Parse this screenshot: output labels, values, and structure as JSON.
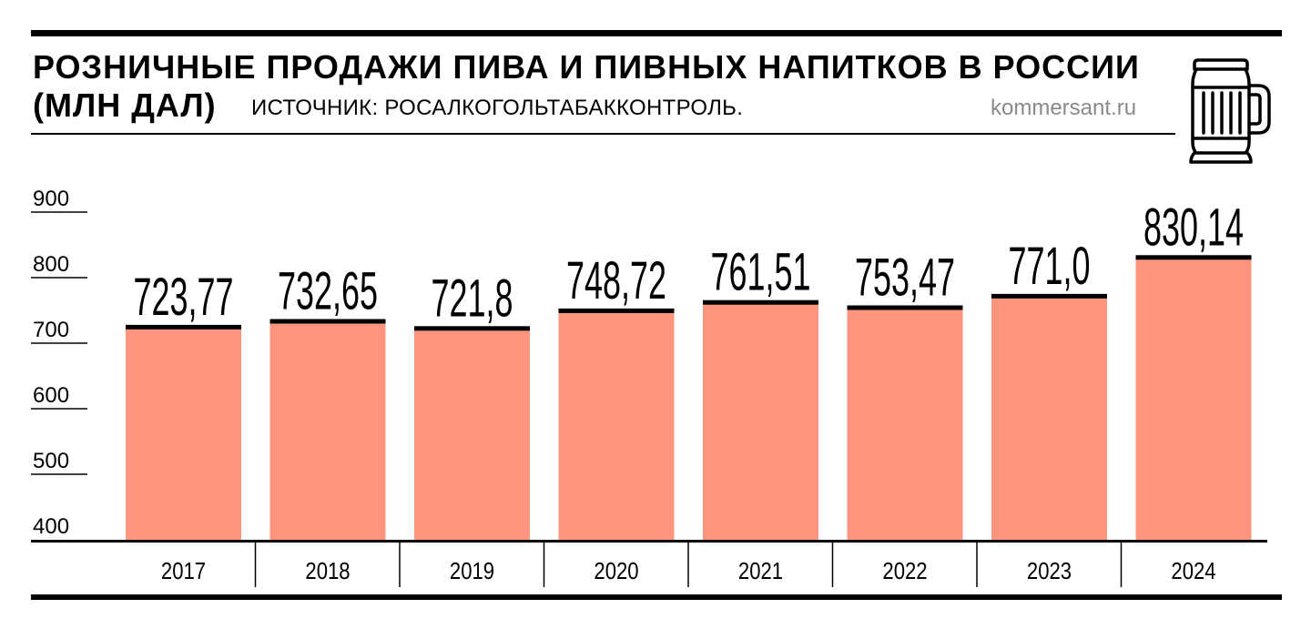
{
  "header": {
    "title_line1": "РОЗНИЧНЫЕ ПРОДАЖИ ПИВА И ПИВНЫХ НАПИТКОВ В РОССИИ",
    "title_line2": "(МЛН ДАЛ)",
    "source": "ИСТОЧНИК: РОСАЛКОГОЛЬТАБАККОНТРОЛЬ.",
    "site": "kommersant.ru",
    "icon": "beer-mug-icon"
  },
  "colors": {
    "bar": "#ff957f",
    "bar_cap": "#000000",
    "text": "#000000",
    "site_text": "#8a8a8a"
  },
  "chart_data": {
    "type": "bar",
    "categories": [
      "2017",
      "2018",
      "2019",
      "2020",
      "2021",
      "2022",
      "2023",
      "2024"
    ],
    "values": [
      723.77,
      732.65,
      721.8,
      748.72,
      761.51,
      753.47,
      771.0,
      830.14
    ],
    "value_labels": [
      "723,77",
      "732,65",
      "721,8",
      "748,72",
      "761,51",
      "753,47",
      "771,0",
      "830,14"
    ],
    "y_ticks": [
      "900",
      "800",
      "700",
      "600",
      "500",
      "400"
    ],
    "ylim": [
      400,
      900
    ],
    "title": "РОЗНИЧНЫЕ ПРОДАЖИ ПИВА И ПИВНЫХ НАПИТКОВ В РОССИИ (МЛН ДАЛ)",
    "xlabel": "",
    "ylabel": "",
    "grid": false,
    "legend": "none"
  }
}
